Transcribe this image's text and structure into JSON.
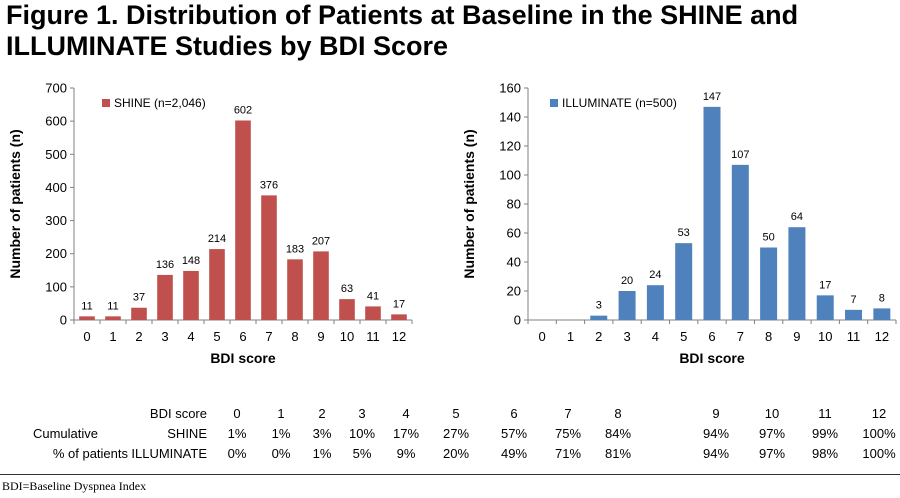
{
  "figure": {
    "title": "Figure 1.  Distribution of Patients at Baseline in the SHINE and ILLUMINATE Studies by BDI Score",
    "footnote": "BDI=Baseline Dyspnea Index"
  },
  "chart_data": [
    {
      "type": "bar",
      "xlabel": "BDI score",
      "ylabel": "Number of patients (n)",
      "categories": [
        "0",
        "1",
        "2",
        "3",
        "4",
        "5",
        "6",
        "7",
        "8",
        "9",
        "10",
        "11",
        "12"
      ],
      "ylim": [
        0,
        700
      ],
      "yticks": [
        0,
        100,
        200,
        300,
        400,
        500,
        600,
        700
      ],
      "legend_position": "top-left",
      "color": "#c0504d",
      "series": [
        {
          "name": "SHINE (n=2,046)",
          "values": [
            11,
            11,
            37,
            136,
            148,
            214,
            602,
            376,
            183,
            207,
            63,
            41,
            17
          ],
          "labels": [
            "11",
            "11",
            "37",
            "136",
            "148",
            "214",
            "602",
            "376",
            "183",
            "207",
            "63",
            "41",
            "17"
          ]
        }
      ]
    },
    {
      "type": "bar",
      "xlabel": "BDI score",
      "ylabel": "Number of patients (n)",
      "categories": [
        "0",
        "1",
        "2",
        "3",
        "4",
        "5",
        "6",
        "7",
        "8",
        "9",
        "10",
        "11",
        "12"
      ],
      "ylim": [
        0,
        160
      ],
      "yticks": [
        0,
        20,
        40,
        60,
        80,
        100,
        120,
        140,
        160
      ],
      "legend_position": "top-left",
      "color": "#4f81bd",
      "series": [
        {
          "name": "ILLUMINATE (n=500)",
          "values": [
            0,
            0,
            3,
            20,
            24,
            53,
            147,
            107,
            50,
            64,
            17,
            7,
            8
          ],
          "labels": [
            "",
            "",
            "3",
            "20",
            "24",
            "53",
            "147",
            "107",
            "50",
            "64",
            "17",
            "7",
            "8"
          ]
        }
      ]
    }
  ],
  "table": {
    "header_label": "BDI score",
    "row_group_label_1": "Cumulative",
    "row_group_label_2": "% of patients",
    "columns": [
      "0",
      "1",
      "2",
      "3",
      "4",
      "5",
      "6",
      "7",
      "8",
      "9",
      "10",
      "11",
      "12"
    ],
    "rows": [
      {
        "name": "SHINE",
        "values": [
          "1%",
          "1%",
          "3%",
          "10%",
          "17%",
          "27%",
          "57%",
          "75%",
          "84%",
          "94%",
          "97%",
          "99%",
          "100%"
        ]
      },
      {
        "name": "ILLUMINATE",
        "values": [
          "0%",
          "0%",
          "1%",
          "5%",
          "9%",
          "20%",
          "49%",
          "71%",
          "81%",
          "94%",
          "97%",
          "98%",
          "100%"
        ]
      }
    ]
  }
}
